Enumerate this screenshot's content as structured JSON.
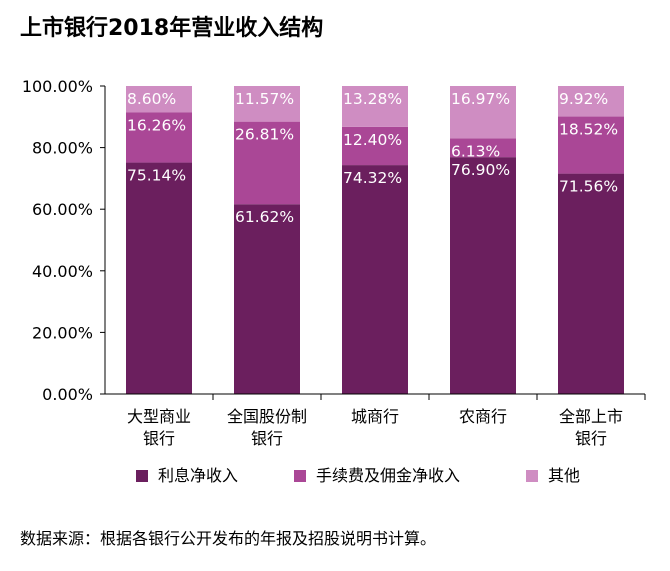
{
  "chart_data": {
    "type": "bar",
    "stacked": true,
    "title": "上市银行2018年营业收入结构",
    "categories": [
      [
        "大型商业",
        "银行"
      ],
      [
        "全国股份制",
        "银行"
      ],
      [
        "城商行"
      ],
      [
        "农商行"
      ],
      [
        "全部上市",
        "银行"
      ]
    ],
    "series": [
      {
        "name": "利息净收入",
        "color": "#6b1f5e",
        "values": [
          75.14,
          61.62,
          74.32,
          76.9,
          71.56
        ],
        "labels": [
          "75.14%",
          "61.62%",
          "74.32%",
          "76.90%",
          "71.56%"
        ]
      },
      {
        "name": "手续费及佣金净收入",
        "color": "#aa4796",
        "values": [
          16.26,
          26.81,
          12.4,
          6.13,
          18.52
        ],
        "labels": [
          "16.26%",
          "26.81%",
          "12.40%",
          "6.13%",
          "18.52%"
        ]
      },
      {
        "name": "其他",
        "color": "#cf8dc2",
        "values": [
          8.6,
          11.57,
          13.28,
          16.97,
          9.92
        ],
        "labels": [
          "8.60%",
          "11.57%",
          "13.28%",
          "16.97%",
          "9.92%"
        ]
      }
    ],
    "yticks": [
      "0.00%",
      "20.00%",
      "40.00%",
      "60.00%",
      "80.00%",
      "100.00%"
    ],
    "ylim": [
      0,
      100
    ],
    "xlabel": "",
    "ylabel": "",
    "legend_position": "bottom",
    "grid": false
  },
  "source_note": "数据来源：根据各银行公开发布的年报及招股说明书计算。"
}
